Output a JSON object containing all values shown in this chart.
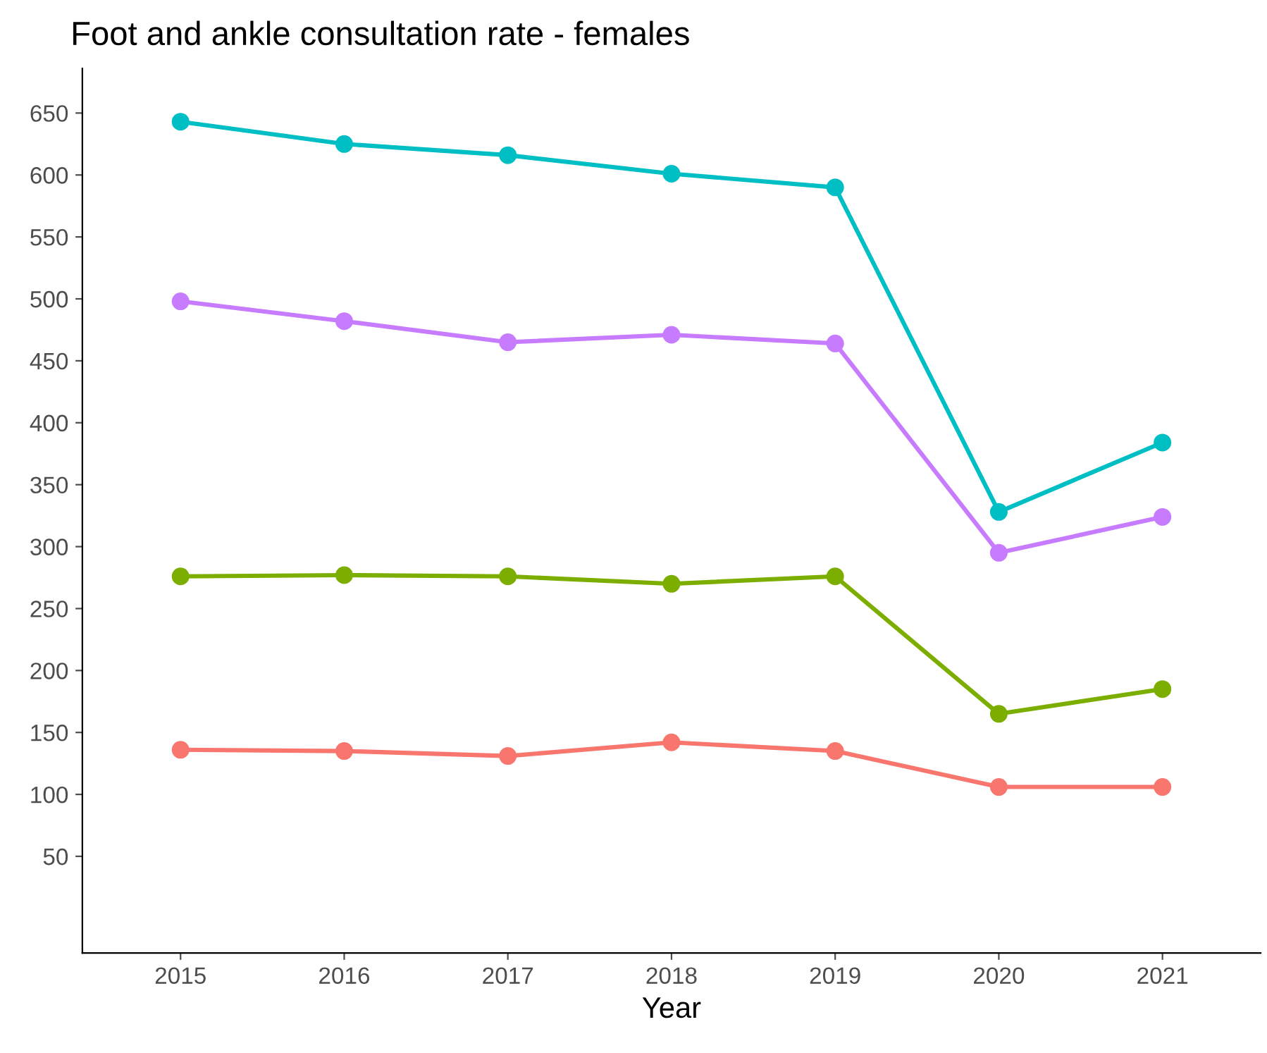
{
  "chart_data": {
    "type": "line",
    "title": "Foot and ankle consultation rate - females",
    "xlabel": "Year",
    "categories": [
      "2015",
      "2016",
      "2017",
      "2018",
      "2019",
      "2020",
      "2021"
    ],
    "series": [
      {
        "color": "#f8766d",
        "values": [
          136,
          135,
          131,
          142,
          135,
          106,
          106
        ]
      },
      {
        "color": "#7cae00",
        "values": [
          276,
          277,
          276,
          270,
          276,
          165,
          185
        ]
      },
      {
        "color": "#00bfc4",
        "values": [
          643,
          625,
          616,
          601,
          590,
          328,
          384
        ]
      },
      {
        "color": "#c77cff",
        "values": [
          498,
          482,
          465,
          471,
          464,
          295,
          324
        ]
      }
    ],
    "ylim": [
      -28,
      686
    ],
    "yticks": [
      50,
      100,
      150,
      200,
      250,
      300,
      350,
      400,
      450,
      500,
      550,
      600,
      650
    ],
    "grid": false,
    "legend": false,
    "marker": "circle",
    "line_style": "solid"
  }
}
